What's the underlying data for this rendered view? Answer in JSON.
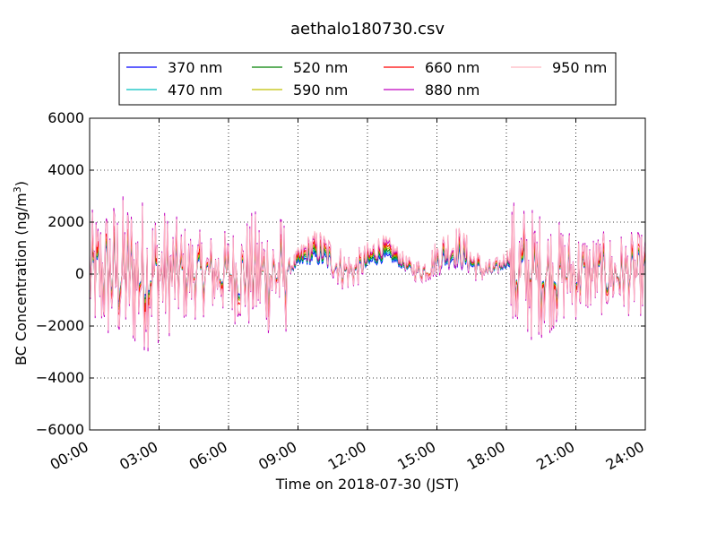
{
  "chart_data": {
    "type": "line",
    "title": "aethalo180730.csv",
    "xlabel": "Time on 2018-07-30 (JST)",
    "ylabel": "BC Concentration (ng/m³)",
    "ylabel_main": "BC Concentration (ng/m",
    "ylabel_sup": "3",
    "ylabel_end": ")",
    "xlim": [
      "00:00",
      "24:00"
    ],
    "ylim": [
      -6000,
      6000
    ],
    "x_ticks": [
      "00:00",
      "03:00",
      "06:00",
      "09:00",
      "12:00",
      "15:00",
      "18:00",
      "21:00",
      "24:00"
    ],
    "y_ticks": [
      "6000",
      "4000",
      "2000",
      "0",
      "−2000",
      "−4000",
      "−6000"
    ],
    "grid": true,
    "legend_position": "top",
    "series": [
      {
        "name": "370 nm",
        "color": "#0000ff"
      },
      {
        "name": "470 nm",
        "color": "#00bfbf"
      },
      {
        "name": "520 nm",
        "color": "#008000"
      },
      {
        "name": "590 nm",
        "color": "#bfbf00"
      },
      {
        "name": "660 nm",
        "color": "#ff0000"
      },
      {
        "name": "880 nm",
        "color": "#bf00bf"
      },
      {
        "name": "950 nm",
        "color": "#ffb6c1"
      }
    ]
  }
}
